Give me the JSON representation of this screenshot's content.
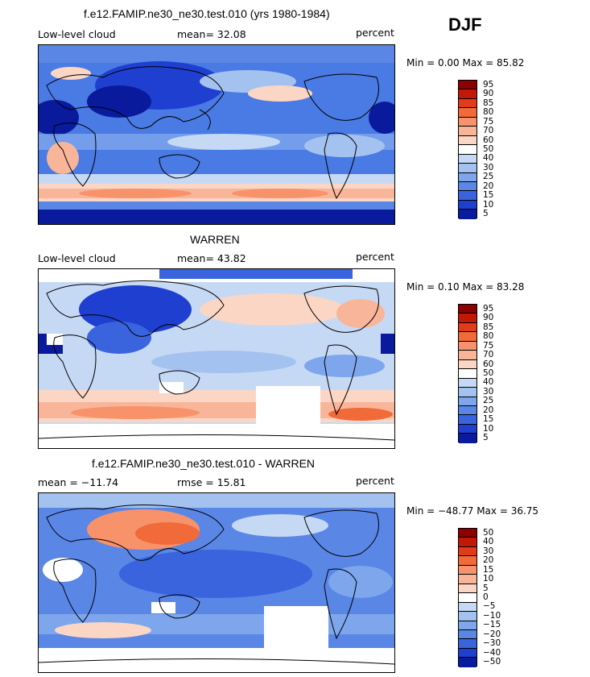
{
  "season": "DJF",
  "panels": [
    {
      "title": "f.e12.FAMIP.ne30_ne30.test.010 (yrs 1980-1984)",
      "left_label": "Low-level cloud",
      "center_label": "mean=  32.08",
      "right_label": "percent",
      "stats": "Min =   0.00 Max =  85.82",
      "levels": [
        "95",
        "90",
        "85",
        "80",
        "75",
        "70",
        "60",
        "50",
        "40",
        "30",
        "25",
        "20",
        "15",
        "10",
        "5"
      ],
      "colors": [
        "#8b0000",
        "#c21807",
        "#e23b1c",
        "#f06a3a",
        "#f8926a",
        "#f9b59a",
        "#fbd6c4",
        "#ffffff",
        "#c6d9f4",
        "#a4c2f0",
        "#7ea6ec",
        "#5a86e6",
        "#3a63de",
        "#1f3fd0",
        "#0a1a9c"
      ]
    },
    {
      "title": "WARREN",
      "left_label": "Low-level cloud",
      "center_label": "mean=  43.82",
      "right_label": "percent",
      "stats": "Min =   0.10 Max =  83.28",
      "levels": [
        "95",
        "90",
        "85",
        "80",
        "75",
        "70",
        "60",
        "50",
        "40",
        "30",
        "25",
        "20",
        "15",
        "10",
        "5"
      ],
      "colors": [
        "#8b0000",
        "#c21807",
        "#e23b1c",
        "#f06a3a",
        "#f8926a",
        "#f9b59a",
        "#fbd6c4",
        "#ffffff",
        "#c6d9f4",
        "#a4c2f0",
        "#7ea6ec",
        "#5a86e6",
        "#3a63de",
        "#1f3fd0",
        "#0a1a9c"
      ]
    },
    {
      "title": "f.e12.FAMIP.ne30_ne30.test.010 - WARREN",
      "left_label": "mean = −11.74",
      "center_label": "rmse =  15.81",
      "right_label": "percent",
      "stats": "Min = −48.77 Max =  36.75",
      "levels": [
        "50",
        "40",
        "30",
        "20",
        "15",
        "10",
        "5",
        "0",
        "−5",
        "−10",
        "−15",
        "−20",
        "−30",
        "−40",
        "−50"
      ],
      "colors": [
        "#8b0000",
        "#c21807",
        "#e23b1c",
        "#f06a3a",
        "#f8926a",
        "#f9b59a",
        "#fbd6c4",
        "#ffffff",
        "#c6d9f4",
        "#a4c2f0",
        "#7ea6ec",
        "#5a86e6",
        "#3a63de",
        "#1f3fd0",
        "#0a1a9c"
      ]
    }
  ]
}
